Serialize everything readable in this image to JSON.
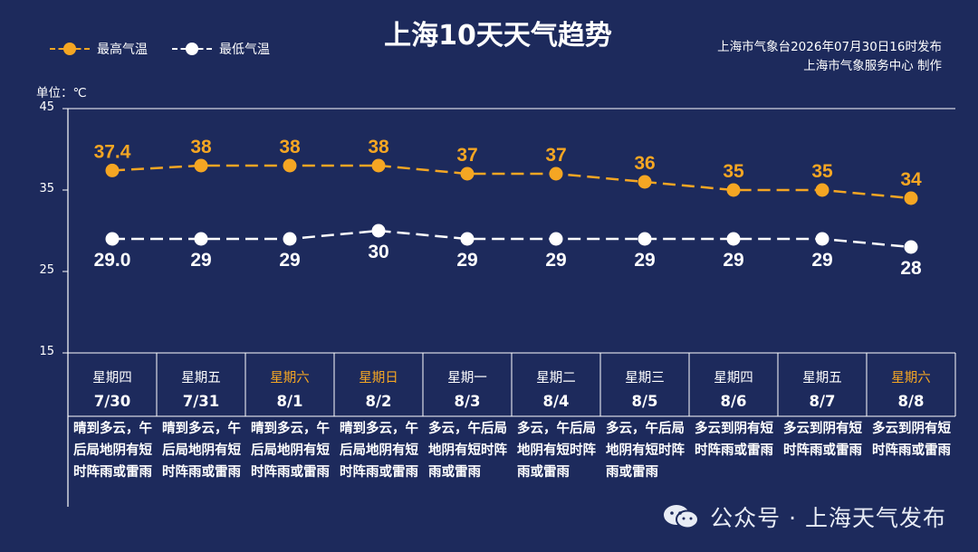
{
  "title": "上海10天天气趋势",
  "publisher": {
    "line1": "上海市气象台2026年07月30日16时发布",
    "line2": "上海市气象服务中心 制作"
  },
  "legend": {
    "high": "最高气温",
    "low": "最低气温"
  },
  "unit_label": "单位：℃",
  "colors": {
    "background": "#1d2a5c",
    "high": "#f5a623",
    "low": "#ffffff",
    "weekend": "#f5a623",
    "grid": "#ffffff"
  },
  "watermark": {
    "text": "公众号 · 上海天气发布",
    "icon": "wechat-icon"
  },
  "chart_data": {
    "type": "line",
    "ylim": [
      15,
      45
    ],
    "yticks": [
      15,
      25,
      35,
      45
    ],
    "categories": [
      "7/30",
      "7/31",
      "8/1",
      "8/2",
      "8/3",
      "8/4",
      "8/5",
      "8/6",
      "8/7",
      "8/8"
    ],
    "series": [
      {
        "name": "最高气温",
        "values": [
          37.4,
          38,
          38,
          38,
          37,
          37,
          36,
          35,
          35,
          34
        ],
        "labels": [
          "37.4",
          "38",
          "38",
          "38",
          "37",
          "37",
          "36",
          "35",
          "35",
          "34"
        ]
      },
      {
        "name": "最低气温",
        "values": [
          29.0,
          29,
          29,
          30,
          29,
          29,
          29,
          29,
          29,
          28
        ],
        "labels": [
          "29.0",
          "29",
          "29",
          "30",
          "29",
          "29",
          "29",
          "29",
          "29",
          "28"
        ]
      }
    ]
  },
  "days": [
    {
      "weekday": "星期四",
      "date": "7/30",
      "weekend": false,
      "desc": "晴到多云，午后局地阴有短时阵雨或雷雨"
    },
    {
      "weekday": "星期五",
      "date": "7/31",
      "weekend": false,
      "desc": "晴到多云，午后局地阴有短时阵雨或雷雨"
    },
    {
      "weekday": "星期六",
      "date": "8/1",
      "weekend": true,
      "desc": "晴到多云，午后局地阴有短时阵雨或雷雨"
    },
    {
      "weekday": "星期日",
      "date": "8/2",
      "weekend": true,
      "desc": "晴到多云，午后局地阴有短时阵雨或雷雨"
    },
    {
      "weekday": "星期一",
      "date": "8/3",
      "weekend": false,
      "desc": "多云，午后局地阴有短时阵雨或雷雨"
    },
    {
      "weekday": "星期二",
      "date": "8/4",
      "weekend": false,
      "desc": "多云，午后局地阴有短时阵雨或雷雨"
    },
    {
      "weekday": "星期三",
      "date": "8/5",
      "weekend": false,
      "desc": "多云，午后局地阴有短时阵雨或雷雨"
    },
    {
      "weekday": "星期四",
      "date": "8/6",
      "weekend": false,
      "desc": "多云到阴有短时阵雨或雷雨"
    },
    {
      "weekday": "星期五",
      "date": "8/7",
      "weekend": false,
      "desc": "多云到阴有短时阵雨或雷雨"
    },
    {
      "weekday": "星期六",
      "date": "8/8",
      "weekend": true,
      "desc": "多云到阴有短时阵雨或雷雨"
    }
  ]
}
